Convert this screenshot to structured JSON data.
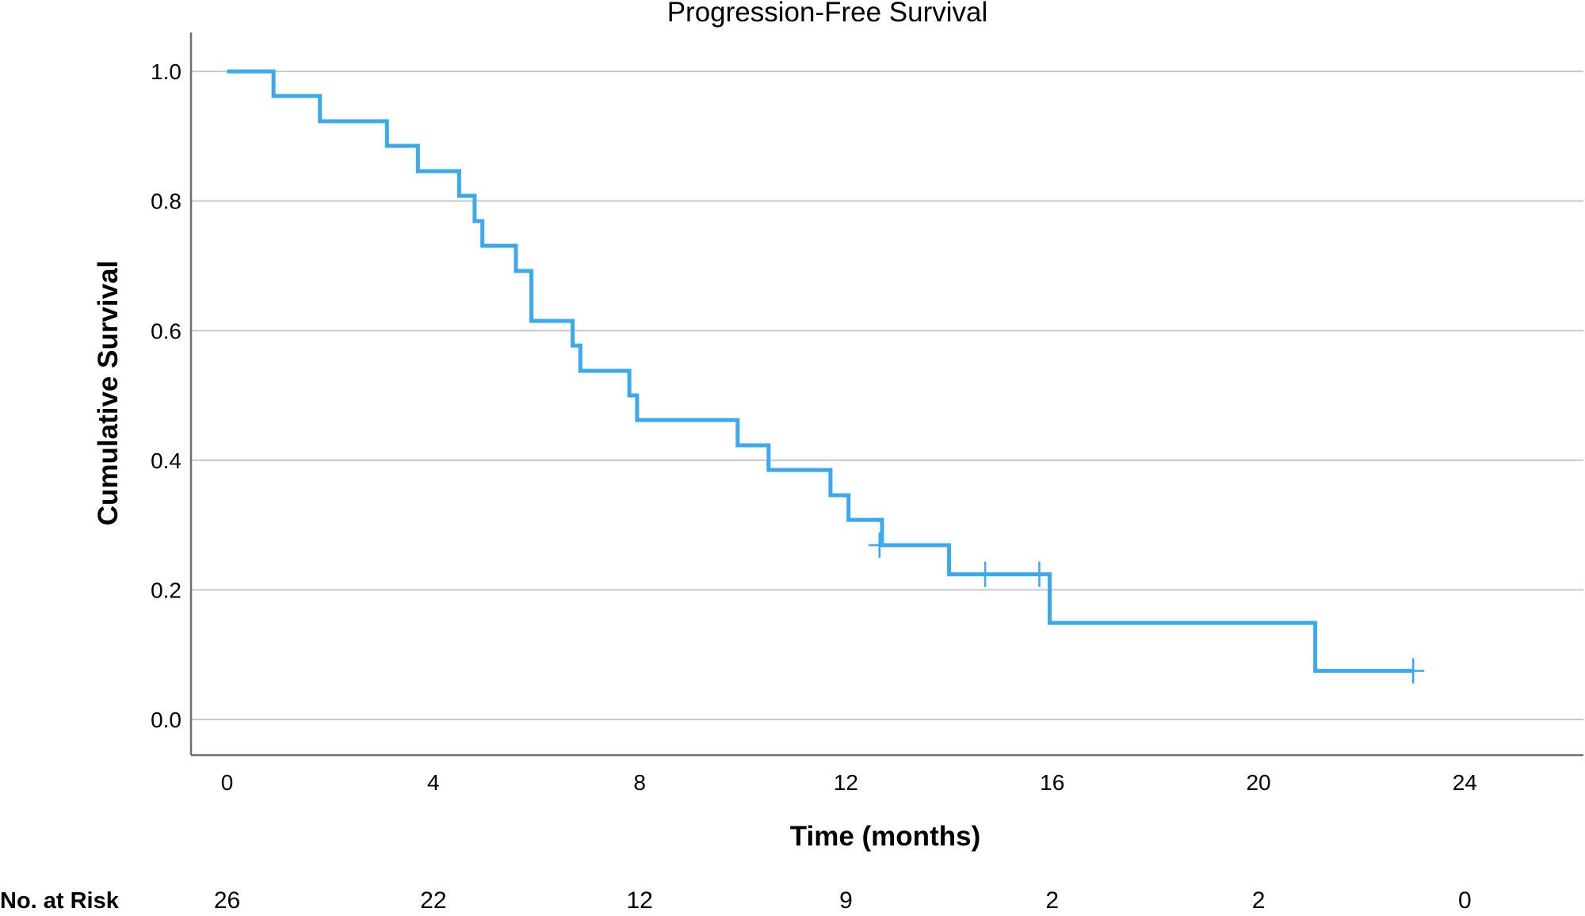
{
  "chart_data": {
    "type": "line",
    "title": "Progression-Free Survival",
    "xlabel": "Time (months)",
    "ylabel": "Cumulative Survival",
    "xlim": [
      -0.7,
      26.3
    ],
    "ylim": [
      -0.055,
      1.06
    ],
    "x_ticks": [
      0,
      4,
      8,
      12,
      16,
      20,
      24
    ],
    "x_tick_labels": [
      "0",
      "4",
      "8",
      "12",
      "16",
      "20",
      "24"
    ],
    "y_ticks": [
      0.0,
      0.2,
      0.4,
      0.6,
      0.8,
      1.0
    ],
    "y_tick_labels": [
      "0.0",
      "0.2",
      "0.4",
      "0.6",
      "0.8",
      "1.0"
    ],
    "grid": true,
    "line_color": "#3aa9ee",
    "series": [
      {
        "steps": [
          [
            0.0,
            1.0
          ],
          [
            0.9,
            0.962
          ],
          [
            1.8,
            0.923
          ],
          [
            3.1,
            0.885
          ],
          [
            3.7,
            0.846
          ],
          [
            4.5,
            0.808
          ],
          [
            4.8,
            0.769
          ],
          [
            4.95,
            0.731
          ],
          [
            5.6,
            0.692
          ],
          [
            5.9,
            0.615
          ],
          [
            6.7,
            0.577
          ],
          [
            6.85,
            0.538
          ],
          [
            7.8,
            0.5
          ],
          [
            7.95,
            0.462
          ],
          [
            9.9,
            0.423
          ],
          [
            10.5,
            0.385
          ],
          [
            11.7,
            0.346
          ],
          [
            12.05,
            0.308
          ],
          [
            12.7,
            0.269
          ],
          [
            14.0,
            0.224
          ],
          [
            15.95,
            0.149
          ],
          [
            21.1,
            0.075
          ]
        ],
        "end_x": 23.0,
        "censored": [
          [
            12.65,
            0.269
          ],
          [
            14.7,
            0.224
          ],
          [
            15.75,
            0.224
          ],
          [
            23.0,
            0.075
          ]
        ]
      }
    ],
    "risk_table": {
      "label": "No. at Risk",
      "times": [
        0,
        4,
        8,
        12,
        16,
        20,
        24
      ],
      "values": [
        "26",
        "22",
        "12",
        "9",
        "2",
        "2",
        "0"
      ]
    }
  }
}
